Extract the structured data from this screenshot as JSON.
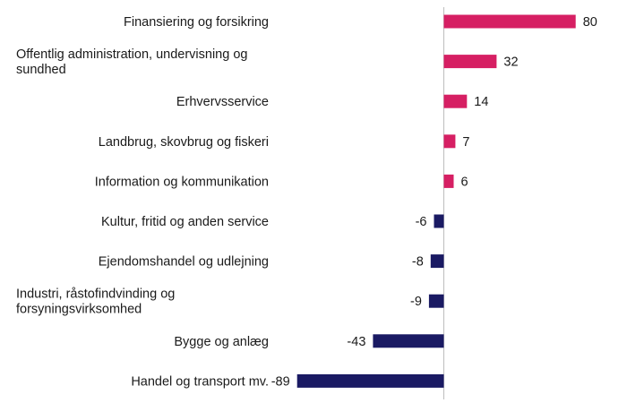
{
  "chart_data": {
    "type": "bar",
    "orientation": "horizontal",
    "categories": [
      [
        "Finansiering og forsikring"
      ],
      [
        "Offentlig administration, undervisning og",
        "sundhed"
      ],
      [
        "Erhvervsservice"
      ],
      [
        "Landbrug, skovbrug og fiskeri"
      ],
      [
        "Information og kommunikation"
      ],
      [
        "Kultur, fritid og anden service"
      ],
      [
        "Ejendomshandel og udlejning"
      ],
      [
        "Industri, råstofindvinding og",
        "forsyningsvirksomhed"
      ],
      [
        "Bygge og anlæg"
      ],
      [
        "Handel og transport mv."
      ]
    ],
    "values": [
      80,
      32,
      14,
      7,
      6,
      -6,
      -8,
      -9,
      -43,
      -89
    ],
    "value_labels": [
      "80",
      "32",
      "14",
      "7",
      "6",
      "-6",
      "-8",
      "-9",
      "-43",
      "-89"
    ],
    "colors": {
      "positive": "#d61f63",
      "negative": "#1a1a63",
      "axis": "#bdbdbd"
    },
    "xlim": [
      -89,
      80
    ],
    "grid": false,
    "legend": "none",
    "title": "",
    "xlabel": "",
    "ylabel": ""
  }
}
